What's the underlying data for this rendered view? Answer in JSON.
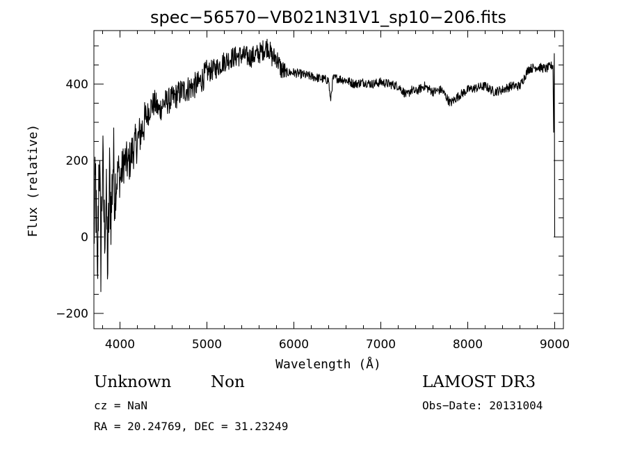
{
  "chart_data": {
    "type": "line",
    "title": "spec−56570−VB021N31V1_sp10−206.fits",
    "xlabel": "Wavelength (Å)",
    "ylabel": "Flux (relative)",
    "xlim": [
      3700,
      9100
    ],
    "ylim": [
      -240,
      540
    ],
    "xticks": [
      4000,
      5000,
      6000,
      7000,
      8000,
      9000
    ],
    "xtick_labels": [
      "4000",
      "5000",
      "6000",
      "7000",
      "8000",
      "9000"
    ],
    "yticks": [
      -200,
      0,
      200,
      400
    ],
    "ytick_labels": [
      "−200",
      "0",
      "200",
      "400"
    ],
    "grid": false,
    "series": [
      {
        "name": "flux",
        "x": [
          3700,
          3720,
          3740,
          3760,
          3780,
          3800,
          3820,
          3840,
          3860,
          3880,
          3900,
          3920,
          3950,
          3980,
          4000,
          4050,
          4100,
          4150,
          4200,
          4250,
          4300,
          4350,
          4400,
          4450,
          4500,
          4600,
          4700,
          4800,
          4900,
          5000,
          5100,
          5200,
          5300,
          5400,
          5500,
          5600,
          5700,
          5750,
          5800,
          5850,
          5900,
          6000,
          6100,
          6200,
          6300,
          6400,
          6420,
          6450,
          6500,
          6600,
          6700,
          6800,
          6900,
          7000,
          7100,
          7200,
          7300,
          7350,
          7400,
          7500,
          7600,
          7700,
          7800,
          7900,
          8000,
          8100,
          8200,
          8300,
          8400,
          8500,
          8600,
          8700,
          8800,
          8900,
          8980,
          9000
        ],
        "y": [
          0,
          150,
          -150,
          250,
          -50,
          200,
          20,
          100,
          -80,
          150,
          60,
          200,
          120,
          180,
          150,
          200,
          190,
          230,
          250,
          280,
          310,
          340,
          350,
          330,
          350,
          360,
          380,
          390,
          400,
          430,
          440,
          460,
          470,
          475,
          470,
          480,
          500,
          470,
          470,
          440,
          430,
          430,
          425,
          420,
          415,
          410,
          355,
          415,
          415,
          410,
          400,
          405,
          400,
          405,
          400,
          395,
          370,
          385,
          380,
          395,
          380,
          385,
          350,
          370,
          385,
          390,
          395,
          380,
          385,
          395,
          395,
          440,
          445,
          440,
          450,
          0
        ],
        "color": "#000000"
      }
    ]
  },
  "info": {
    "object_class": "Unknown",
    "subclass": "Non",
    "survey": "LAMOST DR3",
    "cz": "cz = NaN",
    "obs_date": "Obs−Date: 20131004",
    "coords": "RA =  20.24769, DEC =  31.23249"
  }
}
